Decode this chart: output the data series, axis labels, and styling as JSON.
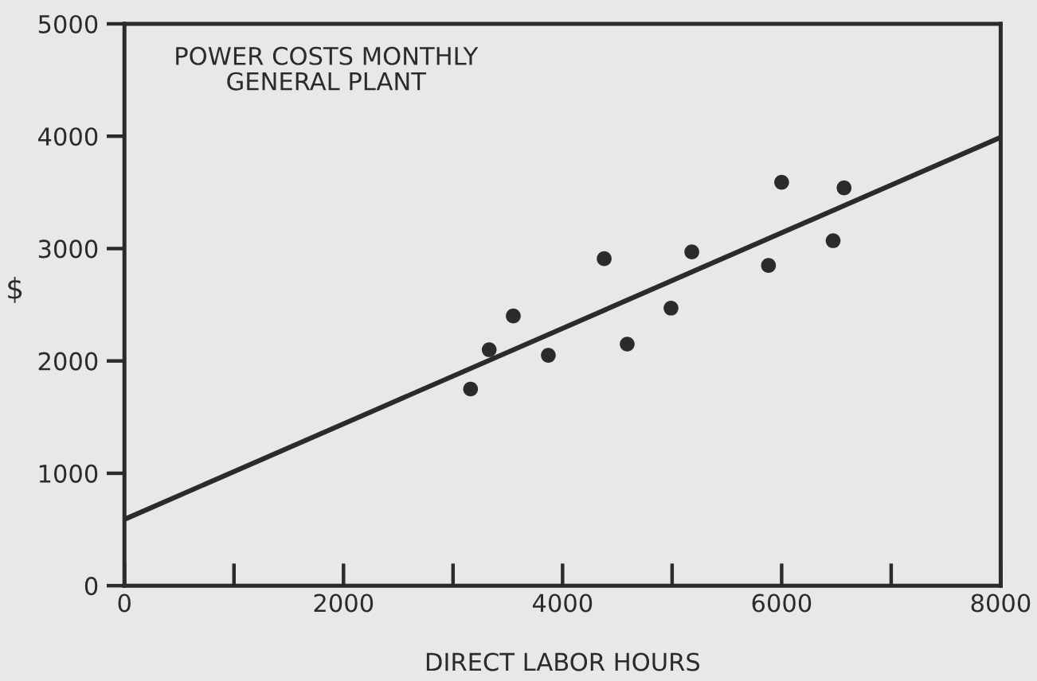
{
  "chart_data": {
    "type": "scatter",
    "title": "POWER COSTS MONTHLY\nGENERAL PLANT",
    "xlabel": "DIRECT LABOR HOURS",
    "ylabel": "$",
    "x": [
      3160,
      3330,
      3550,
      3870,
      4380,
      4590,
      4990,
      5180,
      5880,
      6000,
      6470,
      6570
    ],
    "series": [
      {
        "color": "#2b2b2b",
        "marker": "circle",
        "values": [
          1750,
          2100,
          2400,
          2050,
          2910,
          2150,
          2470,
          2970,
          2850,
          3590,
          3070,
          3540
        ]
      },
      {
        "type": "line",
        "color": "#2b2b2b",
        "x": [
          0,
          8000
        ],
        "values": [
          590,
          3990
        ]
      }
    ],
    "xlim": [
      0,
      8000
    ],
    "ylim": [
      0,
      5000
    ],
    "xticks": [
      0,
      {
        "value": 1000,
        "label": null
      },
      2000,
      {
        "value": 3000,
        "label": null
      },
      4000,
      {
        "value": 5000,
        "label": null
      },
      6000,
      {
        "value": 7000,
        "label": null
      },
      8000
    ],
    "yticks": [
      0,
      1000,
      2000,
      3000,
      4000,
      5000
    ],
    "grid": false,
    "line_style": "solid"
  }
}
